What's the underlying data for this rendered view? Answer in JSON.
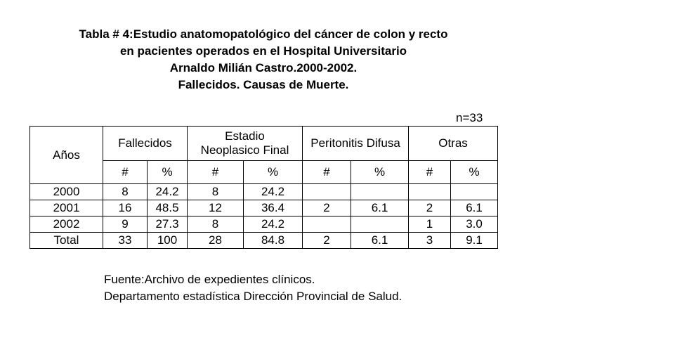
{
  "title": {
    "line1": "Tabla # 4:Estudio anatomopatológico del cáncer de colon y recto",
    "line2": "en pacientes operados en el Hospital Universitario",
    "line3": "Arnaldo Milián Castro.2000-2002.",
    "line4": "Fallecidos. Causas de Muerte."
  },
  "n_label": "n=33",
  "table": {
    "header": {
      "years": "Años",
      "group1": "Fallecidos",
      "group2_line1": "Estadio",
      "group2_line2": "Neoplasico Final",
      "group3": "Peritonitis Difusa",
      "group4": "Otras",
      "sub": [
        "#",
        "%",
        "#",
        "%",
        "#",
        "%",
        "#",
        "%"
      ]
    },
    "rows": [
      [
        "2000",
        "8",
        "24.2",
        "8",
        "24.2",
        "",
        "",
        "",
        ""
      ],
      [
        "2001",
        "16",
        "48.5",
        "12",
        "36.4",
        "2",
        "6.1",
        "2",
        "6.1"
      ],
      [
        "2002",
        "9",
        "27.3",
        "8",
        "24.2",
        "",
        "",
        "1",
        "3.0"
      ],
      [
        "Total",
        "33",
        "100",
        "28",
        "84.8",
        "2",
        "6.1",
        "3",
        "9.1"
      ]
    ]
  },
  "source": {
    "line1": "Fuente:Archivo de expedientes clínicos.",
    "line2": "Departamento estadística Dirección Provincial de Salud."
  }
}
